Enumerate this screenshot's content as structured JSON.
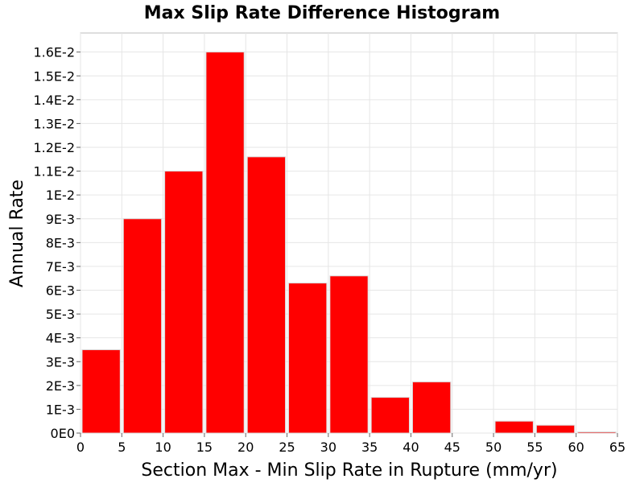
{
  "chart_data": {
    "type": "bar",
    "title": "Max Slip Rate Difference Histogram",
    "xlabel": "Section Max - Min Slip Rate in Rupture (mm/yr)",
    "ylabel": "Annual Rate",
    "xlim": [
      0,
      65
    ],
    "ylim": [
      0,
      0.0168
    ],
    "grid": true,
    "bar_color": "#ff0000",
    "x_ticks": [
      0,
      5,
      10,
      15,
      20,
      25,
      30,
      35,
      40,
      45,
      50,
      55,
      60,
      65
    ],
    "x_tick_labels": [
      "0",
      "5",
      "10",
      "15",
      "20",
      "25",
      "30",
      "35",
      "40",
      "45",
      "50",
      "55",
      "60",
      "65"
    ],
    "y_ticks": [
      0,
      0.001,
      0.002,
      0.003,
      0.004,
      0.005,
      0.006,
      0.007,
      0.008,
      0.009,
      0.01,
      0.011,
      0.012,
      0.013,
      0.014,
      0.015,
      0.016
    ],
    "y_tick_labels": [
      "0E0",
      "1E-3",
      "2E-3",
      "3E-3",
      "4E-3",
      "5E-3",
      "6E-3",
      "7E-3",
      "8E-3",
      "9E-3",
      "1E-2",
      "1.1E-2",
      "1.2E-2",
      "1.3E-2",
      "1.4E-2",
      "1.5E-2",
      "1.6E-2"
    ],
    "bins": [
      {
        "x0": 0,
        "x1": 5,
        "value": 0.0035
      },
      {
        "x0": 5,
        "x1": 10,
        "value": 0.009
      },
      {
        "x0": 10,
        "x1": 15,
        "value": 0.011
      },
      {
        "x0": 15,
        "x1": 20,
        "value": 0.016
      },
      {
        "x0": 20,
        "x1": 25,
        "value": 0.0116
      },
      {
        "x0": 25,
        "x1": 30,
        "value": 0.0063
      },
      {
        "x0": 30,
        "x1": 35,
        "value": 0.0066
      },
      {
        "x0": 35,
        "x1": 40,
        "value": 0.0015
      },
      {
        "x0": 40,
        "x1": 45,
        "value": 0.00215
      },
      {
        "x0": 45,
        "x1": 50,
        "value": 0.0
      },
      {
        "x0": 50,
        "x1": 55,
        "value": 0.0005
      },
      {
        "x0": 55,
        "x1": 60,
        "value": 0.00033
      },
      {
        "x0": 60,
        "x1": 65,
        "value": 5e-05
      }
    ]
  }
}
